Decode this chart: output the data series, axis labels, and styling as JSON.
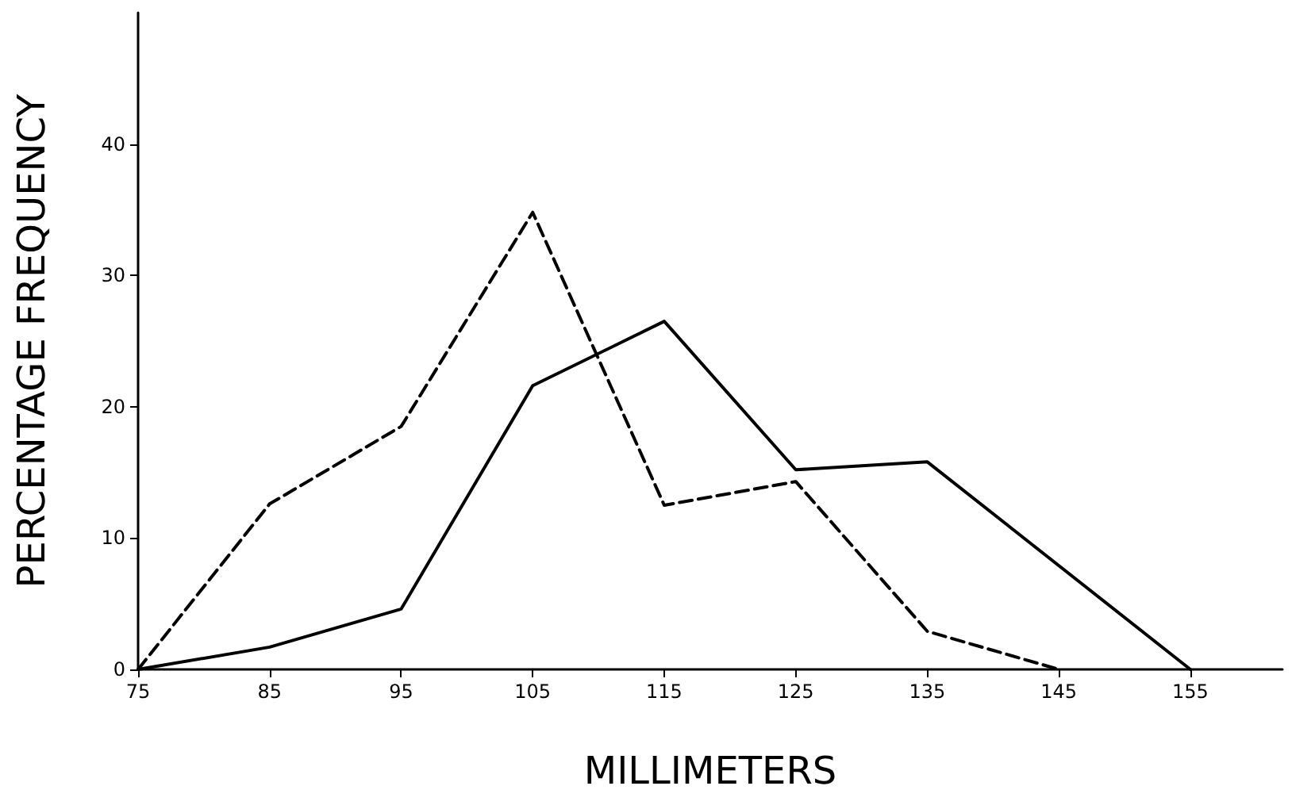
{
  "chart_data": {
    "type": "line",
    "xlabel": "MILLIMETERS",
    "ylabel": "PERCENTAGE FREQUENCY",
    "xlim": [
      75,
      162
    ],
    "xticks": [
      75,
      85,
      95,
      105,
      115,
      125,
      135,
      145,
      155
    ],
    "ylim": [
      0,
      50
    ],
    "yticks": [
      0,
      10,
      20,
      30,
      40
    ],
    "grid": false,
    "marker": "none",
    "series": [
      {
        "color": "#000000",
        "line_style": "dashed",
        "x": [
          75,
          85,
          95,
          105,
          115,
          125,
          135,
          145
        ],
        "values": [
          0,
          12.6,
          18.5,
          34.8,
          12.5,
          14.3,
          2.9,
          0
        ]
      },
      {
        "color": "#000000",
        "line_style": "solid",
        "x": [
          75,
          85,
          95,
          105,
          115,
          125,
          135,
          155
        ],
        "values": [
          0,
          1.7,
          4.6,
          21.6,
          26.5,
          15.2,
          15.8,
          0
        ]
      }
    ]
  }
}
